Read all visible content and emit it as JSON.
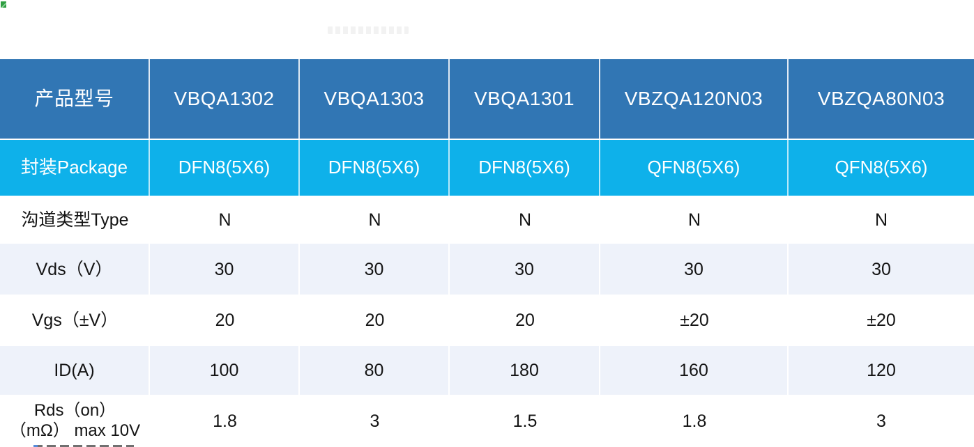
{
  "colors": {
    "header_bg": "#3176b4",
    "header_text": "#ffffff",
    "row2_bg": "#0eb1ea",
    "alt_bg": "#eef2fa",
    "body_text": "#141414",
    "corner_mark_green": "#2f9e41"
  },
  "table": {
    "columns": [
      "产品型号",
      "VBQA1302",
      "VBQA1303",
      "VBQA1301",
      "VBZQA120N03",
      "VBZQA80N03"
    ],
    "rows": [
      {
        "label": "封装Package",
        "values": [
          "DFN8(5X6)",
          "DFN8(5X6)",
          "DFN8(5X6)",
          "QFN8(5X6)",
          "QFN8(5X6)"
        ]
      },
      {
        "label": "沟道类型Type",
        "values": [
          "N",
          "N",
          "N",
          "N",
          "N"
        ]
      },
      {
        "label": "Vds（V）",
        "values": [
          "30",
          "30",
          "30",
          "30",
          "30"
        ]
      },
      {
        "label": "Vgs（±V）",
        "values": [
          "20",
          "20",
          "20",
          "±20",
          "±20"
        ]
      },
      {
        "label": "ID(A)",
        "values": [
          "100",
          "80",
          "180",
          "160",
          "120"
        ]
      },
      {
        "label": "Rds（on） （mΩ） max 10V",
        "values": [
          "1.8",
          "3",
          "1.5",
          "1.8",
          "3"
        ]
      }
    ]
  }
}
